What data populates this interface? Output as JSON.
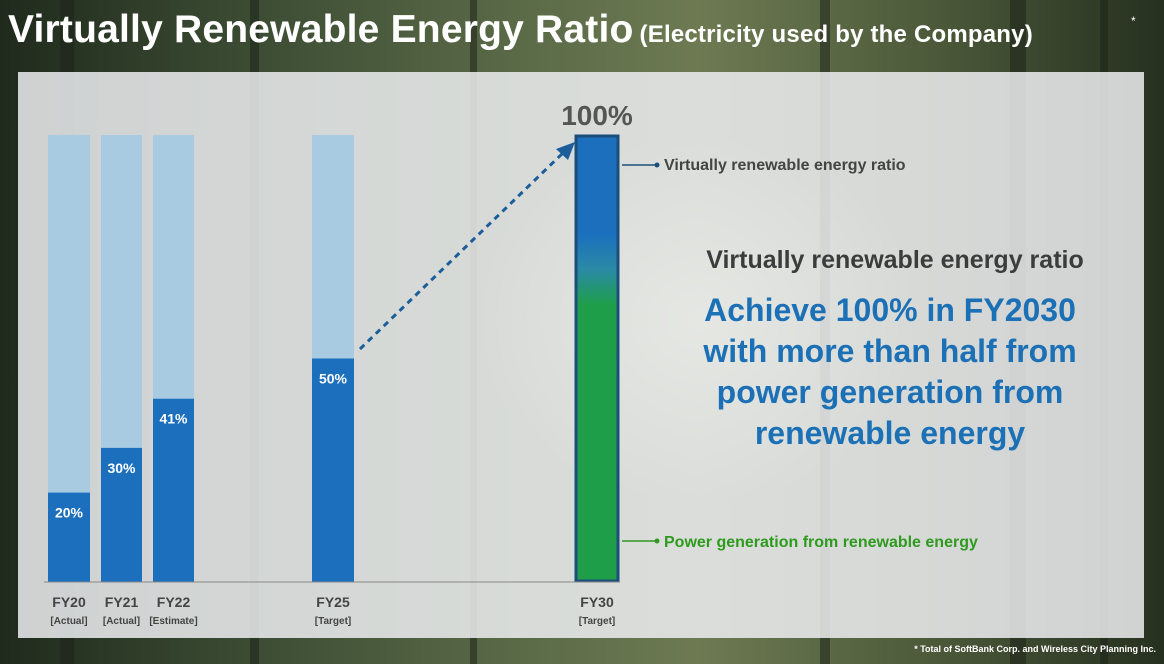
{
  "title": {
    "main": "Virtually Renewable Energy Ratio",
    "sub": "(Electricity used by the Company)",
    "mark": "*"
  },
  "footnote": "* Total of SoftBank Corp. and Wireless City Planning Inc.",
  "message": {
    "subtitle": "Virtually renewable energy ratio",
    "lines": [
      "Achieve 100% in FY2030",
      "with more than half from",
      "power generation from",
      "renewable energy"
    ]
  },
  "colors": {
    "bar_fill": "#1b6fbd",
    "bar_background": "#a9cbe2",
    "renewable_green": "#1e9e48",
    "fy30_border": "#1c4e7c",
    "callout_blue": "#1c70b5",
    "legend_green": "#2e9a1e"
  },
  "chart_data": {
    "type": "bar",
    "categories": [
      "FY20",
      "FY21",
      "FY22",
      "FY25",
      "FY30"
    ],
    "category_notes": [
      "[Actual]",
      "[Actual]",
      "[Estimate]",
      "[Target]",
      "[Target]"
    ],
    "values": [
      20,
      30,
      41,
      50,
      100
    ],
    "value_labels": [
      "20%",
      "30%",
      "41%",
      "50%",
      "100%"
    ],
    "ylim": [
      0,
      100
    ],
    "stacked_composition": {
      "category": "FY30",
      "segments": [
        {
          "name": "Virtually renewable energy ratio",
          "position": "top"
        },
        {
          "name": "Power generation from renewable energy",
          "position": "bottom"
        }
      ]
    },
    "annotation": "dotted arrow from FY25 to FY30",
    "grid": false,
    "legend": "right of FY30 bar"
  }
}
